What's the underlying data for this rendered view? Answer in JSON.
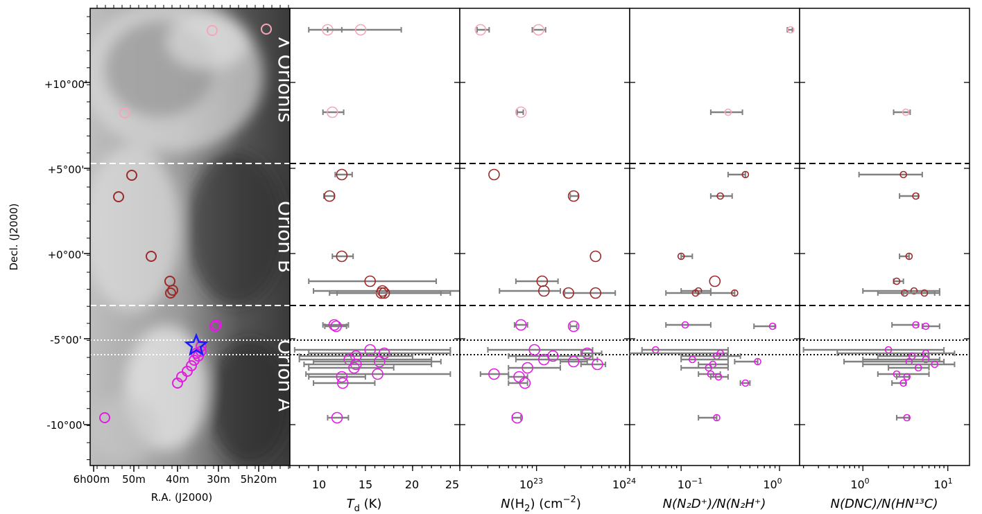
{
  "chart_data": [
    {
      "type": "image",
      "panel": "sky-map",
      "xlabel": "R.A. (J2000)",
      "ylabel": "Decl. (J2000)",
      "x_ticks": [
        "6h00m",
        "50m",
        "40m",
        "30m",
        "5h20m"
      ],
      "y_ticks": [
        "+10°00'",
        "+5°00'",
        "+0°00'",
        "-5°00'",
        "-10°00'"
      ],
      "region_labels": [
        "λ Orionis",
        "Orion B",
        "Orion A"
      ],
      "marker_label_star": "blue star marker"
    },
    {
      "type": "scatter",
      "panel": "Td",
      "xlabel_main": "T",
      "xlabel_sub": "d",
      "xlabel_tail": " (K)",
      "x_ticks": [
        "10",
        "15",
        "20",
        "25"
      ],
      "xlim": [
        7,
        25
      ],
      "scale": "linear"
    },
    {
      "type": "scatter",
      "panel": "NH2",
      "xlabel_main": "N",
      "xlabel_tail": "(H",
      "xlabel_sub": "2",
      "xlabel_end": ") (cm",
      "xlabel_sup": "−2",
      "xlabel_close": ")",
      "x_ticks": [
        "10",
        "10"
      ],
      "x_tick_exp": [
        "23",
        "24"
      ],
      "xlim": [
        1.5e+22,
        1e+24
      ],
      "scale": "log"
    },
    {
      "type": "scatter",
      "panel": "N2D+/N2H+",
      "xlabel_text": "N(N₂D⁺)/N(N₂H⁺)",
      "x_ticks": [
        "10",
        "10"
      ],
      "x_tick_exp": [
        "−1",
        "0"
      ],
      "xlim": [
        0.03,
        1.6
      ],
      "scale": "log"
    },
    {
      "type": "scatter",
      "panel": "DNC/HN13C",
      "xlabel_text": "N(DNC)/N(HN¹³C)",
      "x_ticks": [
        "10",
        "10"
      ],
      "x_tick_exp": [
        "0",
        "1"
      ],
      "xlim": [
        0.18,
        18
      ],
      "scale": "log"
    }
  ],
  "colors": {
    "lambda_orionis": "#f4a7b9",
    "orion_b": "#9b2a2a",
    "orion_a": "#e01ee0",
    "errorbar": "#808080",
    "star": "#1a1aff",
    "divider": "#000000"
  }
}
